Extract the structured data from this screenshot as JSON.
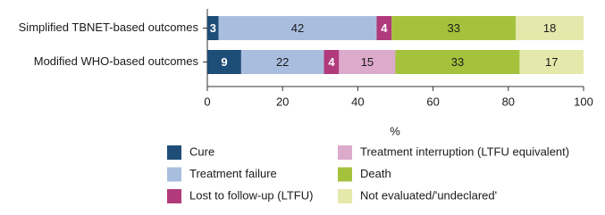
{
  "chart_data": {
    "type": "stacked-bar-horizontal",
    "categories": [
      "Simplified TBNET-based outcomes",
      "Modified WHO-based outcomes"
    ],
    "series": [
      {
        "name": "Cure",
        "color": "#1e4d78",
        "values": [
          3,
          9
        ]
      },
      {
        "name": "Treatment failure",
        "color": "#a9bedf",
        "values": [
          42,
          22
        ]
      },
      {
        "name": "Lost to follow-up (LTFU)",
        "color": "#b03a7c",
        "values": [
          4,
          4
        ]
      },
      {
        "name": "Treatment interruption (LTFU equivalent)",
        "color": "#dcaacb",
        "values": [
          null,
          15
        ]
      },
      {
        "name": "Death",
        "color": "#a4c23c",
        "values": [
          33,
          33
        ]
      },
      {
        "name": "Not evaluated/'undeclared'",
        "color": "#e4e8ab",
        "values": [
          18,
          17
        ]
      }
    ],
    "xlabel": "%",
    "xlim": [
      0,
      100
    ],
    "xticks": [
      0,
      20,
      40,
      60,
      80,
      100
    ]
  }
}
